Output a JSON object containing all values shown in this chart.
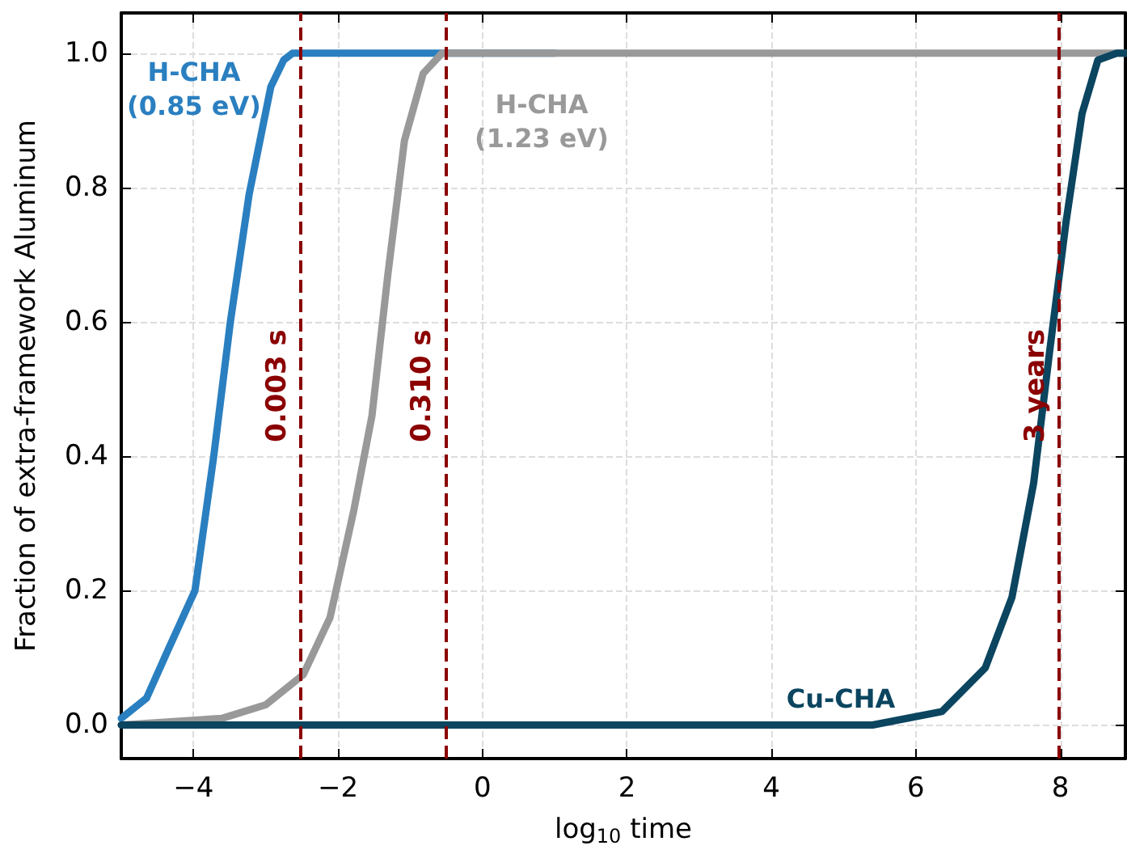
{
  "chart_data": {
    "type": "line",
    "xlabel": "log$_{10}$ time",
    "ylabel": "Fraction of extra-framework Aluminum",
    "xlim": [
      -5,
      8.9
    ],
    "ylim": [
      -0.05,
      1.06
    ],
    "xticks": [
      {
        "value": -4,
        "label": "−4"
      },
      {
        "value": -2,
        "label": "−2"
      },
      0,
      2,
      4,
      6,
      8
    ],
    "yticks": [
      {
        "value": 0,
        "label": "0.0"
      },
      {
        "value": 0.2,
        "label": "0.2"
      },
      {
        "value": 0.4,
        "label": "0.4"
      },
      {
        "value": 0.6,
        "label": "0.6"
      },
      {
        "value": 0.8,
        "label": "0.8"
      },
      {
        "value": 1,
        "label": "1.0"
      }
    ],
    "grid": true,
    "series": [
      {
        "name": "H-CHA\n(0.85 eV)",
        "color": "#2a7fc0",
        "x": [
          -5,
          -4.65,
          -4.36,
          -3.98,
          -3.72,
          -3.49,
          -3.23,
          -2.93,
          -2.75,
          -2.63,
          -2.4,
          1
        ],
        "values": [
          0.01,
          0.04,
          0.11,
          0.2,
          0.4,
          0.6,
          0.79,
          0.95,
          0.99,
          1.0,
          1.0,
          1.0
        ]
      },
      {
        "name": "H-CHA\n(1.23 eV)",
        "color": "#999999",
        "x": [
          -5,
          -3.6,
          -3.0,
          -2.48,
          -2.11,
          -1.78,
          -1.53,
          -1.31,
          -1.08,
          -0.82,
          -0.56,
          8.9
        ],
        "values": [
          0.0,
          0.01,
          0.03,
          0.075,
          0.16,
          0.32,
          0.46,
          0.67,
          0.87,
          0.97,
          1.0,
          1.0
        ]
      },
      {
        "name": "Cu-CHA",
        "color": "#0b4560",
        "x": [
          -5,
          5.4,
          6.36,
          6.96,
          7.33,
          7.63,
          7.85,
          8.08,
          8.3,
          8.52,
          8.78,
          8.9
        ],
        "values": [
          0.0,
          0.0,
          0.02,
          0.085,
          0.19,
          0.36,
          0.555,
          0.75,
          0.91,
          0.99,
          1.0,
          1.0
        ]
      }
    ],
    "ref_lines": [
      {
        "axis": "x",
        "value": -2.52,
        "label": "0.003 s",
        "color": "#8b0000",
        "line_style": "dashed"
      },
      {
        "axis": "x",
        "value": -0.51,
        "label": "0.310 s",
        "color": "#8b0000",
        "line_style": "dashed"
      },
      {
        "axis": "x",
        "value": 7.98,
        "label": "3 years",
        "color": "#8b0000",
        "line_style": "dashed"
      }
    ]
  }
}
